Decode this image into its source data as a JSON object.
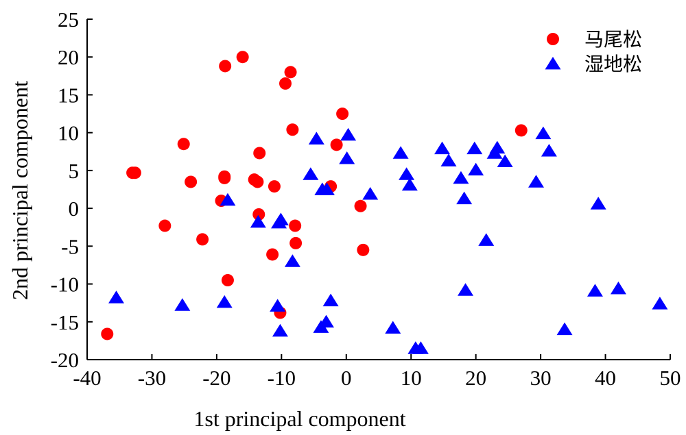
{
  "chart_data": {
    "type": "scatter",
    "xlabel": "1st principal component",
    "ylabel": "2nd principal component",
    "xlim": [
      -40,
      50
    ],
    "ylim": [
      -20,
      25
    ],
    "xticks": [
      -40,
      -30,
      -20,
      -10,
      0,
      10,
      20,
      30,
      40,
      50
    ],
    "yticks": [
      -20,
      -15,
      -10,
      -5,
      0,
      5,
      10,
      15,
      20,
      25
    ],
    "grid": false,
    "legend_position": "top-right",
    "series": [
      {
        "name": "马尾松",
        "marker": "circle",
        "color": "#ff0000",
        "points": [
          [
            -16,
            20
          ],
          [
            -18.7,
            18.8
          ],
          [
            -8.6,
            18
          ],
          [
            -9.4,
            16.5
          ],
          [
            -0.6,
            12.5
          ],
          [
            -8.3,
            10.4
          ],
          [
            27,
            10.3
          ],
          [
            -25.1,
            8.5
          ],
          [
            -1.5,
            8.4
          ],
          [
            -13.4,
            7.3
          ],
          [
            -33,
            4.7
          ],
          [
            -32.6,
            4.7
          ],
          [
            -18.8,
            4.2
          ],
          [
            -18.8,
            4.0
          ],
          [
            -14.2,
            3.8
          ],
          [
            -24,
            3.5
          ],
          [
            -13.7,
            3.5
          ],
          [
            -11.1,
            2.9
          ],
          [
            -2.4,
            2.9
          ],
          [
            -19.3,
            1.0
          ],
          [
            2.2,
            0.3
          ],
          [
            -13.5,
            -0.8
          ],
          [
            -28,
            -2.3
          ],
          [
            -7.9,
            -2.3
          ],
          [
            -22.2,
            -4.1
          ],
          [
            -7.8,
            -4.6
          ],
          [
            2.6,
            -5.5
          ],
          [
            -11.4,
            -6.1
          ],
          [
            -18.3,
            -9.5
          ],
          [
            -10.2,
            -13.8
          ],
          [
            -36.9,
            -16.6
          ]
        ]
      },
      {
        "name": "湿地松",
        "marker": "triangle",
        "color": "#0000ff",
        "points": [
          [
            30.4,
            9.9
          ],
          [
            0.3,
            9.7
          ],
          [
            -4.6,
            9.2
          ],
          [
            14.8,
            7.9
          ],
          [
            19.8,
            7.9
          ],
          [
            23.3,
            8.0
          ],
          [
            8.4,
            7.3
          ],
          [
            22.9,
            7.3
          ],
          [
            31.3,
            7.6
          ],
          [
            0.1,
            6.6
          ],
          [
            15.8,
            6.3
          ],
          [
            24.5,
            6.2
          ],
          [
            20.0,
            5.1
          ],
          [
            -5.5,
            4.5
          ],
          [
            9.3,
            4.5
          ],
          [
            17.7,
            4.0
          ],
          [
            29.3,
            3.5
          ],
          [
            9.8,
            3.1
          ],
          [
            -3.7,
            2.5
          ],
          [
            -3.0,
            2.5
          ],
          [
            3.7,
            1.9
          ],
          [
            18.2,
            1.3
          ],
          [
            -18.3,
            1.1
          ],
          [
            38.9,
            0.6
          ],
          [
            -10.1,
            -1.5
          ],
          [
            -10.4,
            -1.9
          ],
          [
            -13.6,
            -1.8
          ],
          [
            21.6,
            -4.2
          ],
          [
            -8.3,
            -7.0
          ],
          [
            -35.5,
            -11.8
          ],
          [
            -18.8,
            -12.4
          ],
          [
            -25.3,
            -12.8
          ],
          [
            -2.4,
            -12.2
          ],
          [
            -10.6,
            -12.9
          ],
          [
            18.4,
            -10.8
          ],
          [
            38.4,
            -10.9
          ],
          [
            42.0,
            -10.6
          ],
          [
            48.4,
            -12.6
          ],
          [
            -3.1,
            -15.0
          ],
          [
            -3.9,
            -15.7
          ],
          [
            -10.2,
            -16.2
          ],
          [
            7.2,
            -15.8
          ],
          [
            33.7,
            -16.0
          ],
          [
            10.7,
            -18.5
          ],
          [
            11.5,
            -18.5
          ]
        ]
      }
    ]
  }
}
